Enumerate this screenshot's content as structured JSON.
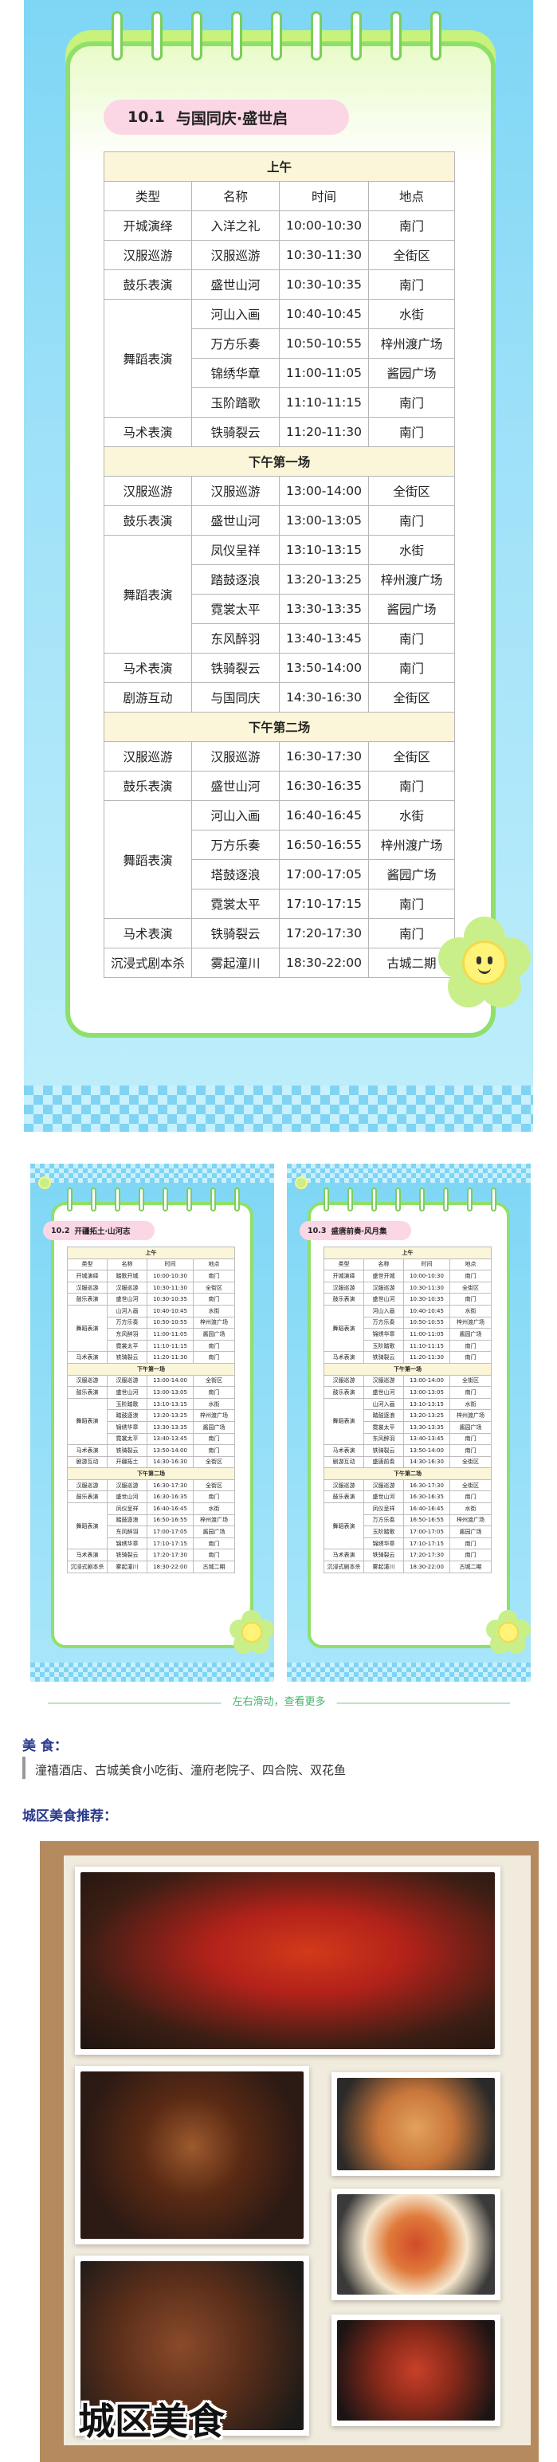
{
  "main_schedule": {
    "date_num": "10.1",
    "date_title": "与国同庆·盛世启",
    "header": [
      "类型",
      "名称",
      "时间",
      "地点"
    ],
    "sections": [
      {
        "title": "上午",
        "rows": [
          [
            "开城演绎",
            "入洋之礼",
            "10:00-10:30",
            "南门"
          ],
          [
            "汉服巡游",
            "汉服巡游",
            "10:30-11:30",
            "全街区"
          ],
          [
            "鼓乐表演",
            "盛世山河",
            "10:30-10:35",
            "南门"
          ],
          [
            "舞蹈表演",
            "河山入画",
            "10:40-10:45",
            "水街"
          ],
          [
            "",
            "万方乐奏",
            "10:50-10:55",
            "梓州渡广场"
          ],
          [
            "",
            "锦绣华章",
            "11:00-11:05",
            "酱园广场"
          ],
          [
            "",
            "玉阶踏歌",
            "11:10-11:15",
            "南门"
          ],
          [
            "马术表演",
            "铁骑裂云",
            "11:20-11:30",
            "南门"
          ]
        ]
      },
      {
        "title": "下午第一场",
        "rows": [
          [
            "汉服巡游",
            "汉服巡游",
            "13:00-14:00",
            "全街区"
          ],
          [
            "鼓乐表演",
            "盛世山河",
            "13:00-13:05",
            "南门"
          ],
          [
            "舞蹈表演",
            "凤仪呈祥",
            "13:10-13:15",
            "水街"
          ],
          [
            "",
            "踏鼓逐浪",
            "13:20-13:25",
            "梓州渡广场"
          ],
          [
            "",
            "霓裳太平",
            "13:30-13:35",
            "酱园广场"
          ],
          [
            "",
            "东风醉羽",
            "13:40-13:45",
            "南门"
          ],
          [
            "马术表演",
            "铁骑裂云",
            "13:50-14:00",
            "南门"
          ],
          [
            "剧游互动",
            "与国同庆",
            "14:30-16:30",
            "全街区"
          ]
        ]
      },
      {
        "title": "下午第二场",
        "rows": [
          [
            "汉服巡游",
            "汉服巡游",
            "16:30-17:30",
            "全街区"
          ],
          [
            "鼓乐表演",
            "盛世山河",
            "16:30-16:35",
            "南门"
          ],
          [
            "舞蹈表演",
            "河山入画",
            "16:40-16:45",
            "水街"
          ],
          [
            "",
            "万方乐奏",
            "16:50-16:55",
            "梓州渡广场"
          ],
          [
            "",
            "塔鼓逐浪",
            "17:00-17:05",
            "酱园广场"
          ],
          [
            "",
            "霓裳太平",
            "17:10-17:15",
            "南门"
          ],
          [
            "马术表演",
            "铁骑裂云",
            "17:20-17:30",
            "南门"
          ],
          [
            "沉浸式剧本杀",
            "雾起潼川",
            "18:30-22:00",
            "古城二期"
          ]
        ]
      }
    ]
  },
  "mini_left": {
    "date_num": "10.2",
    "date_title": "开疆拓土·山河志",
    "header": [
      "类型",
      "名称",
      "时间",
      "地点"
    ],
    "sections": [
      {
        "title": "上午",
        "rows": [
          [
            "开城演绎",
            "踏歌开城",
            "10:00-10:30",
            "南门"
          ],
          [
            "汉服巡游",
            "汉服巡游",
            "10:30-11:30",
            "全街区"
          ],
          [
            "鼓乐表演",
            "盛世山河",
            "10:30-10:35",
            "南门"
          ],
          [
            "舞蹈表演",
            "山河入画",
            "10:40-10:45",
            "水街"
          ],
          [
            "",
            "万方乐奏",
            "10:50-10:55",
            "梓州渡广场"
          ],
          [
            "",
            "东风醉羽",
            "11:00-11:05",
            "酱园广场"
          ],
          [
            "",
            "霓裳太平",
            "11:10-11:15",
            "南门"
          ],
          [
            "马术表演",
            "铁骑裂云",
            "11:20-11:30",
            "南门"
          ]
        ]
      },
      {
        "title": "下午第一场",
        "rows": [
          [
            "汉服巡游",
            "汉服巡游",
            "13:00-14:00",
            "全街区"
          ],
          [
            "鼓乐表演",
            "盛世山河",
            "13:00-13:05",
            "南门"
          ],
          [
            "舞蹈表演",
            "玉阶踏歌",
            "13:10-13:15",
            "水街"
          ],
          [
            "",
            "踏鼓逐浪",
            "13:20-13:25",
            "梓州渡广场"
          ],
          [
            "",
            "锦绣华章",
            "13:30-13:35",
            "酱园广场"
          ],
          [
            "",
            "霓裳太平",
            "13:40-13:45",
            "南门"
          ],
          [
            "马术表演",
            "铁骑裂云",
            "13:50-14:00",
            "南门"
          ],
          [
            "剧游互动",
            "开疆拓土",
            "14:30-16:30",
            "全街区"
          ]
        ]
      },
      {
        "title": "下午第二场",
        "rows": [
          [
            "汉服巡游",
            "汉服巡游",
            "16:30-17:30",
            "全街区"
          ],
          [
            "鼓乐表演",
            "盛世山河",
            "16:30-16:35",
            "南门"
          ],
          [
            "舞蹈表演",
            "凤仪呈祥",
            "16:40-16:45",
            "水街"
          ],
          [
            "",
            "踏鼓逐浪",
            "16:50-16:55",
            "梓州渡广场"
          ],
          [
            "",
            "东风醉羽",
            "17:00-17:05",
            "酱园广场"
          ],
          [
            "",
            "锦绣华章",
            "17:10-17:15",
            "南门"
          ],
          [
            "马术表演",
            "铁骑裂云",
            "17:20-17:30",
            "南门"
          ],
          [
            "沉浸式剧本杀",
            "雾起潼川",
            "18:30-22:00",
            "古城二期"
          ]
        ]
      }
    ]
  },
  "mini_right": {
    "date_num": "10.3",
    "date_title": "盛唐前奏·风月集",
    "header": [
      "类型",
      "名称",
      "时间",
      "地点"
    ],
    "sections": [
      {
        "title": "上午",
        "rows": [
          [
            "开城演绎",
            "盛世开城",
            "10:00-10:30",
            "南门"
          ],
          [
            "汉服巡游",
            "汉服巡游",
            "10:30-11:30",
            "全街区"
          ],
          [
            "鼓乐表演",
            "盛世山河",
            "10:30-10:35",
            "南门"
          ],
          [
            "舞蹈表演",
            "河山入画",
            "10:40-10:45",
            "水街"
          ],
          [
            "",
            "万方乐奏",
            "10:50-10:55",
            "梓州渡广场"
          ],
          [
            "",
            "锦绣华章",
            "11:00-11:05",
            "酱园广场"
          ],
          [
            "",
            "玉阶踏歌",
            "11:10-11:15",
            "南门"
          ],
          [
            "马术表演",
            "铁骑裂云",
            "11:20-11:30",
            "南门"
          ]
        ]
      },
      {
        "title": "下午第一场",
        "rows": [
          [
            "汉服巡游",
            "汉服巡游",
            "13:00-14:00",
            "全街区"
          ],
          [
            "鼓乐表演",
            "盛世山河",
            "13:00-13:05",
            "南门"
          ],
          [
            "舞蹈表演",
            "山河入画",
            "13:10-13:15",
            "水街"
          ],
          [
            "",
            "踏鼓逐浪",
            "13:20-13:25",
            "梓州渡广场"
          ],
          [
            "",
            "霓裳太平",
            "13:30-13:35",
            "酱园广场"
          ],
          [
            "",
            "东风醉羽",
            "13:40-13:45",
            "南门"
          ],
          [
            "马术表演",
            "铁骑裂云",
            "13:50-14:00",
            "南门"
          ],
          [
            "剧游互动",
            "盛唐前奏",
            "14:30-16:30",
            "全街区"
          ]
        ]
      },
      {
        "title": "下午第二场",
        "rows": [
          [
            "汉服巡游",
            "汉服巡游",
            "16:30-17:30",
            "全街区"
          ],
          [
            "鼓乐表演",
            "盛世山河",
            "16:30-16:35",
            "南门"
          ],
          [
            "舞蹈表演",
            "凤仪呈祥",
            "16:40-16:45",
            "水街"
          ],
          [
            "",
            "万方乐奏",
            "16:50-16:55",
            "梓州渡广场"
          ],
          [
            "",
            "玉阶踏歌",
            "17:00-17:05",
            "酱园广场"
          ],
          [
            "",
            "锦绣华章",
            "17:10-17:15",
            "南门"
          ],
          [
            "马术表演",
            "铁骑裂云",
            "17:20-17:30",
            "南门"
          ],
          [
            "沉浸式剧本杀",
            "雾起潼川",
            "18:30-22:00",
            "古城二期"
          ]
        ]
      }
    ]
  },
  "swipe_hint": "左右滑动，查看更多",
  "food": {
    "label": "美 食：",
    "text": "潼禧酒店、古城美食小吃街、潼府老院子、四合院、双花鱼",
    "rec_label": "城区美食推荐：",
    "collage_title": "城区美食",
    "images": [
      "hotpot-photo",
      "dishes-photo",
      "chicken-feet-photo",
      "fish-photo",
      "shrimp-photo",
      "bbq-photo"
    ]
  },
  "colors": {
    "sky": "#7ed6f5",
    "card_border": "#8ee06a",
    "pill": "#fbd6e5",
    "section_bg": "#fbf6d9",
    "label_blue": "#2a3a8c",
    "swipe_green": "#49b36d"
  }
}
